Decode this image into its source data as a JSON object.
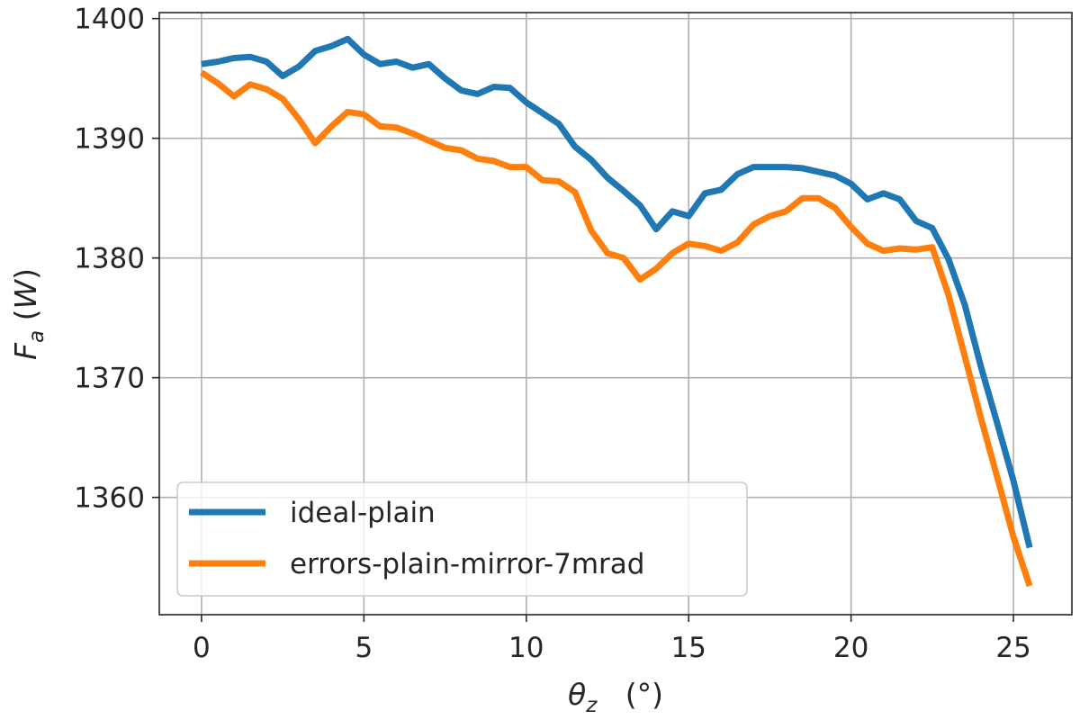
{
  "chart_data": {
    "type": "line",
    "xlabel": "θz (°)",
    "ylabel": "Fa (W)",
    "xlim": [
      -1.3,
      26.8
    ],
    "ylim": [
      1350.2,
      1400.5
    ],
    "xticks": [
      0,
      5,
      10,
      15,
      20,
      25
    ],
    "yticks": [
      1360,
      1370,
      1380,
      1390,
      1400
    ],
    "grid": true,
    "legend_position": "lower-left",
    "x": [
      0,
      0.5,
      1,
      1.5,
      2,
      2.5,
      3,
      3.5,
      4,
      4.5,
      5,
      5.5,
      6,
      6.5,
      7,
      7.5,
      8,
      8.5,
      9,
      9.5,
      10,
      10.5,
      11,
      11.5,
      12,
      12.5,
      13,
      13.5,
      14,
      14.5,
      15,
      15.5,
      16,
      16.5,
      17,
      17.5,
      18,
      18.5,
      19,
      19.5,
      20,
      20.5,
      21,
      21.5,
      22,
      22.5,
      23,
      23.5,
      24,
      24.5,
      25,
      25.5
    ],
    "series": [
      {
        "name": "ideal-plain",
        "color": "#1f77b4",
        "values": [
          1396.2,
          1396.4,
          1396.7,
          1396.8,
          1396.4,
          1395.2,
          1396.0,
          1397.3,
          1397.7,
          1398.3,
          1397.0,
          1396.2,
          1396.4,
          1395.9,
          1396.2,
          1395.0,
          1394.0,
          1393.7,
          1394.3,
          1394.2,
          1393.0,
          1392.1,
          1391.2,
          1389.3,
          1388.2,
          1386.7,
          1385.6,
          1384.4,
          1382.4,
          1383.9,
          1383.5,
          1385.4,
          1385.7,
          1387.0,
          1387.6,
          1387.6,
          1387.6,
          1387.5,
          1387.2,
          1386.9,
          1386.2,
          1384.9,
          1385.4,
          1384.9,
          1383.1,
          1382.5,
          1379.9,
          1376.1,
          1370.9,
          1366.2,
          1361.4,
          1355.8
        ]
      },
      {
        "name": "errors-plain-mirror-7mrad",
        "color": "#ff7f0e",
        "values": [
          1395.5,
          1394.6,
          1393.5,
          1394.5,
          1394.1,
          1393.3,
          1391.6,
          1389.6,
          1391.0,
          1392.2,
          1392.0,
          1391.0,
          1390.9,
          1390.4,
          1389.8,
          1389.2,
          1389.0,
          1388.3,
          1388.1,
          1387.6,
          1387.6,
          1386.5,
          1386.4,
          1385.5,
          1382.3,
          1380.4,
          1380.0,
          1378.2,
          1379.1,
          1380.4,
          1381.2,
          1381.0,
          1380.6,
          1381.3,
          1382.8,
          1383.5,
          1383.9,
          1385.0,
          1385.0,
          1384.2,
          1382.6,
          1381.2,
          1380.6,
          1380.8,
          1380.7,
          1380.9,
          1376.9,
          1371.8,
          1366.6,
          1361.7,
          1356.7,
          1352.6
        ]
      }
    ]
  }
}
